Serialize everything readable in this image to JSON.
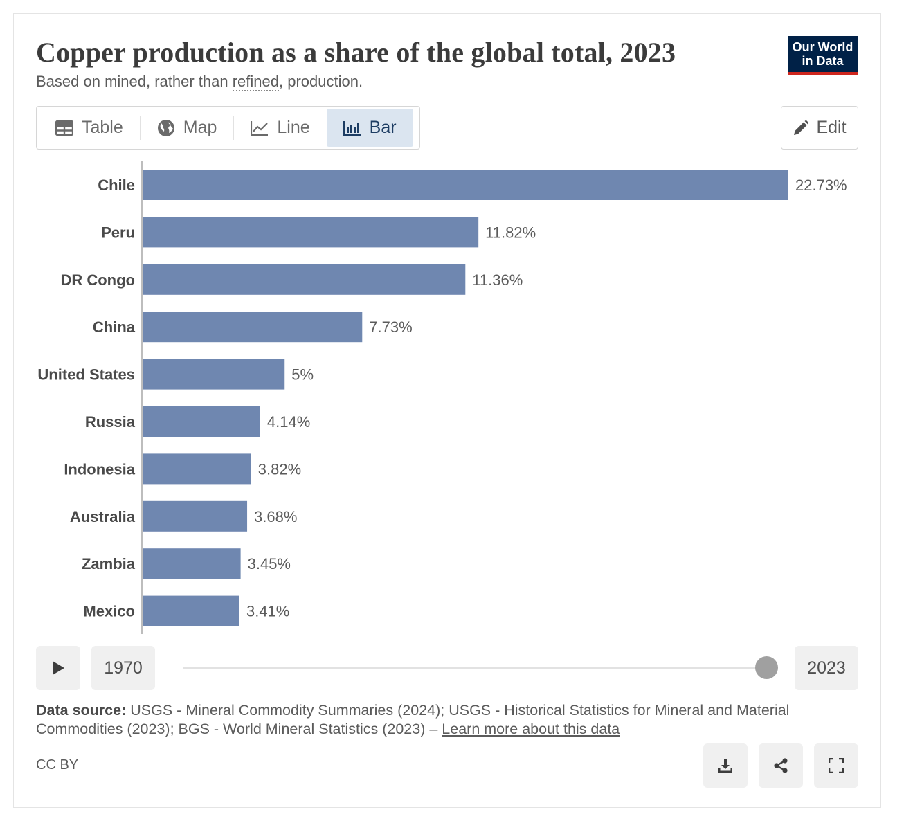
{
  "header": {
    "title": "Copper production as a share of the global total, 2023",
    "subtitle_pre": "Based on mined, rather than ",
    "subtitle_link": "refined",
    "subtitle_post": ", production.",
    "logo_line1": "Our World",
    "logo_line2": "in Data"
  },
  "tabs": [
    {
      "label": "Table",
      "icon": "table-icon"
    },
    {
      "label": "Map",
      "icon": "globe-icon"
    },
    {
      "label": "Line",
      "icon": "line-chart-icon"
    },
    {
      "label": "Bar",
      "icon": "bar-chart-icon"
    }
  ],
  "edit_label": "Edit",
  "chart_data": {
    "type": "bar",
    "orientation": "horizontal",
    "categories": [
      "Chile",
      "Peru",
      "DR Congo",
      "China",
      "United States",
      "Russia",
      "Indonesia",
      "Australia",
      "Zambia",
      "Mexico"
    ],
    "values": [
      22.73,
      11.82,
      11.36,
      7.73,
      5,
      4.14,
      3.82,
      3.68,
      3.45,
      3.41
    ],
    "value_labels": [
      "22.73%",
      "11.82%",
      "11.36%",
      "7.73%",
      "5%",
      "4.14%",
      "3.82%",
      "3.68%",
      "3.45%",
      "3.41%"
    ],
    "xlim": [
      0,
      22.73
    ],
    "bar_color": "#6f87b0",
    "grid": false
  },
  "timeline": {
    "start_year": "1970",
    "end_year": "2023"
  },
  "footer": {
    "source_label": "Data source:",
    "source_text": " USGS - Mineral Commodity Summaries (2024); USGS - Historical Statistics for Mineral and Material Commodities (2023); BGS - World Mineral Statistics (2023) – ",
    "learn_more": "Learn more about this data",
    "license": "CC BY"
  }
}
